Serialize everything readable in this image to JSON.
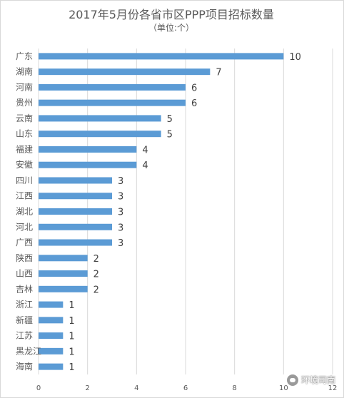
{
  "chart_data": {
    "type": "bar",
    "orientation": "horizontal",
    "title": "2017年5月份各省市区PPP项目招标数量",
    "subtitle": "（单位:个）",
    "categories": [
      "广东",
      "湖南",
      "河南",
      "贵州",
      "云南",
      "山东",
      "福建",
      "安徽",
      "四川",
      "江西",
      "湖北",
      "河北",
      "广西",
      "陕西",
      "山西",
      "吉林",
      "浙江",
      "新疆",
      "江苏",
      "黑龙江",
      "海南"
    ],
    "values": [
      10,
      7,
      6,
      6,
      5,
      5,
      4,
      4,
      3,
      3,
      3,
      3,
      3,
      2,
      2,
      2,
      1,
      1,
      1,
      1,
      1
    ],
    "xlim": [
      0,
      12
    ],
    "xticks": [
      "0",
      "2",
      "4",
      "6",
      "8",
      "10",
      "12"
    ],
    "bar_color": "#5b9bd5",
    "grid": true,
    "data_labels": true
  },
  "watermark": {
    "text": "环境司南",
    "icon": "wechat-icon"
  }
}
